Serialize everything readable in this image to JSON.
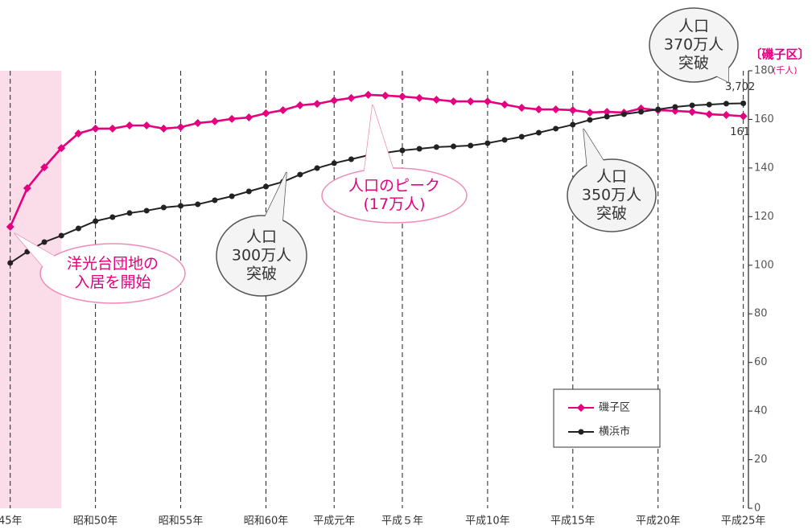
{
  "chart_data": {
    "type": "line",
    "axis_title": "〔磯子区〕",
    "axis_unit": "(千人)",
    "x": [
      1970,
      1971,
      1972,
      1973,
      1974,
      1975,
      1976,
      1977,
      1978,
      1979,
      1980,
      1981,
      1982,
      1983,
      1984,
      1985,
      1986,
      1987,
      1988,
      1989,
      1990,
      1991,
      1992,
      1993,
      1994,
      1995,
      1996,
      1997,
      1998,
      1999,
      2000,
      2001,
      2002,
      2003,
      2004,
      2005,
      2006,
      2007,
      2008,
      2009,
      2010,
      2011,
      2012,
      2013
    ],
    "xlim": [
      1969.4,
      2013.3
    ],
    "xticks": [
      {
        "value": 1970,
        "label": "45年"
      },
      {
        "value": 1975,
        "label": "昭和50年"
      },
      {
        "value": 1980,
        "label": "昭和55年"
      },
      {
        "value": 1985,
        "label": "昭和60年"
      },
      {
        "value": 1989,
        "label": "平成元年"
      },
      {
        "value": 1993,
        "label": "平成５年"
      },
      {
        "value": 1998,
        "label": "平成10年"
      },
      {
        "value": 2003,
        "label": "平成15年"
      },
      {
        "value": 2008,
        "label": "平成20年"
      },
      {
        "value": 2013,
        "label": "平成25年"
      }
    ],
    "ylim": [
      0,
      180
    ],
    "yticks": [
      0,
      20,
      40,
      60,
      80,
      100,
      120,
      140,
      160,
      180
    ],
    "y2lim": [
      0,
      4000
    ],
    "highlight": [
      1969.4,
      1973
    ],
    "highlight_color": "#fbdde9",
    "legend": "lower-right",
    "series": [
      {
        "name": "磯子区",
        "color": "#e4007f",
        "marker": "diamond",
        "values": [
          115.8,
          131.7,
          140.3,
          148.2,
          154.2,
          156.2,
          156.2,
          157.5,
          157.5,
          156.2,
          156.8,
          158.5,
          159.2,
          160.2,
          160.8,
          162.5,
          163.8,
          165.8,
          166.4,
          167.8,
          168.8,
          170.1,
          169.8,
          169.4,
          168.8,
          168.1,
          167.4,
          167.4,
          167.4,
          166.1,
          164.8,
          164.1,
          164.1,
          163.8,
          162.8,
          163.1,
          162.8,
          164.5,
          163.8,
          163.5,
          163.1,
          162.1,
          161.8,
          161.3
        ],
        "value_labels": [
          null,
          null,
          null,
          null,
          null,
          null,
          null,
          null,
          null,
          null,
          null,
          null,
          null,
          null,
          null,
          null,
          null,
          null,
          null,
          null,
          null,
          null,
          null,
          null,
          null,
          null,
          null,
          null,
          null,
          null,
          null,
          null,
          null,
          null,
          null,
          null,
          null,
          null,
          null,
          null,
          null,
          null,
          null,
          "161"
        ]
      },
      {
        "name": "横浜市",
        "color": "#222222",
        "marker": "circle",
        "axis": "y2",
        "values": [
          2243,
          2346,
          2434,
          2493,
          2559,
          2625,
          2662,
          2699,
          2721,
          2750,
          2765,
          2779,
          2816,
          2853,
          2897,
          2941,
          2985,
          3051,
          3110,
          3155,
          3191,
          3228,
          3250,
          3272,
          3287,
          3302,
          3309,
          3316,
          3338,
          3368,
          3397,
          3434,
          3471,
          3507,
          3551,
          3581,
          3603,
          3625,
          3647,
          3669,
          3684,
          3691,
          3699,
          3702
        ],
        "value_labels": [
          null,
          null,
          null,
          null,
          null,
          null,
          null,
          null,
          null,
          null,
          null,
          null,
          null,
          null,
          null,
          null,
          null,
          null,
          null,
          null,
          null,
          null,
          null,
          null,
          null,
          null,
          null,
          null,
          null,
          null,
          null,
          null,
          null,
          null,
          null,
          null,
          null,
          null,
          null,
          null,
          null,
          null,
          null,
          "3,702"
        ]
      }
    ],
    "annotations": [
      {
        "lines": [
          "人口",
          "370万人",
          "突破"
        ],
        "color": "#333333"
      },
      {
        "lines": [
          "人口のピーク",
          "(17万人)"
        ],
        "color": "#e4007f"
      },
      {
        "lines": [
          "人口",
          "300万人",
          "突破"
        ],
        "color": "#333333"
      },
      {
        "lines": [
          "人口",
          "350万人",
          "突破"
        ],
        "color": "#333333"
      },
      {
        "lines": [
          "洋光台団地の",
          "入居を開始"
        ],
        "color": "#e4007f"
      }
    ]
  }
}
